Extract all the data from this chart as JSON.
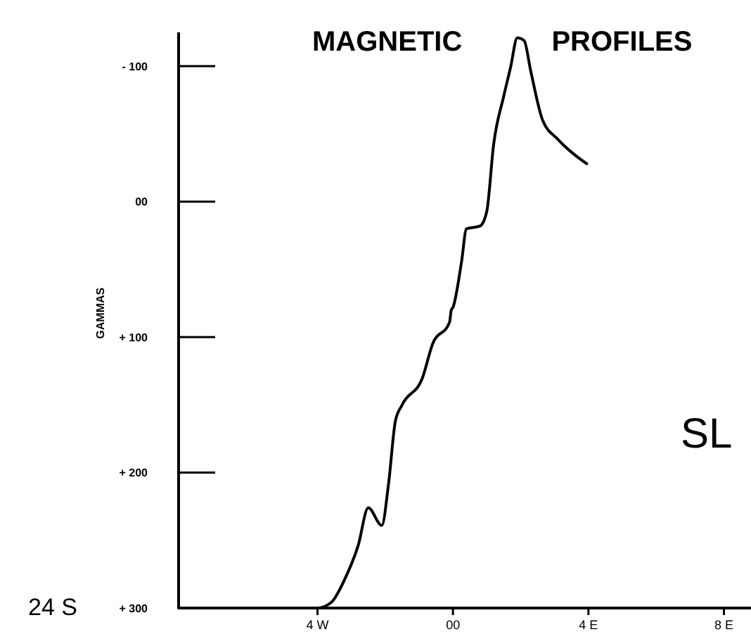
{
  "chart_data": {
    "type": "line",
    "title": "MAGNETIC PROFILES",
    "ylabel": "GAMMAS",
    "annotations": [
      "24 S",
      "SL"
    ],
    "x": [
      -8.1,
      -4,
      -3.6,
      -3.2,
      -2.8,
      -2.5,
      -2.1,
      -1.9,
      -1.7,
      -1.5,
      -0.9,
      -0.6,
      -0.1,
      -0.05,
      0,
      0.25,
      0.4,
      0.8,
      1,
      1.2,
      1.5,
      1.7,
      1.9,
      2.1,
      2.3,
      2.65,
      3.1,
      3.95
    ],
    "series": [
      {
        "color": "#000000",
        "values": [
          300,
          300,
          296,
          279,
          254,
          226,
          239,
          208,
          162,
          150,
          130,
          105,
          89,
          80,
          78,
          45,
          20,
          18,
          7,
          -42,
          -78,
          -99,
          -121,
          -119,
          -96,
          -60,
          -46,
          -28
        ]
      }
    ],
    "xlim": [
      -8.1,
      8.8
    ],
    "xticks": [
      {
        "value": -4,
        "label": "4 W"
      },
      {
        "value": 0,
        "label": "00"
      },
      {
        "value": 4,
        "label": "4 E"
      },
      {
        "value": 8,
        "label": "8 E"
      }
    ],
    "ylim": [
      300,
      -125
    ],
    "yticks": [
      {
        "value": -100,
        "label": "- 100"
      },
      {
        "value": 0,
        "label": "00"
      },
      {
        "value": 100,
        "label": "+ 100"
      },
      {
        "value": 200,
        "label": "+ 200"
      },
      {
        "value": 300,
        "label": "+ 300"
      }
    ],
    "grid": false,
    "marker": "none",
    "line_style": "solid"
  }
}
